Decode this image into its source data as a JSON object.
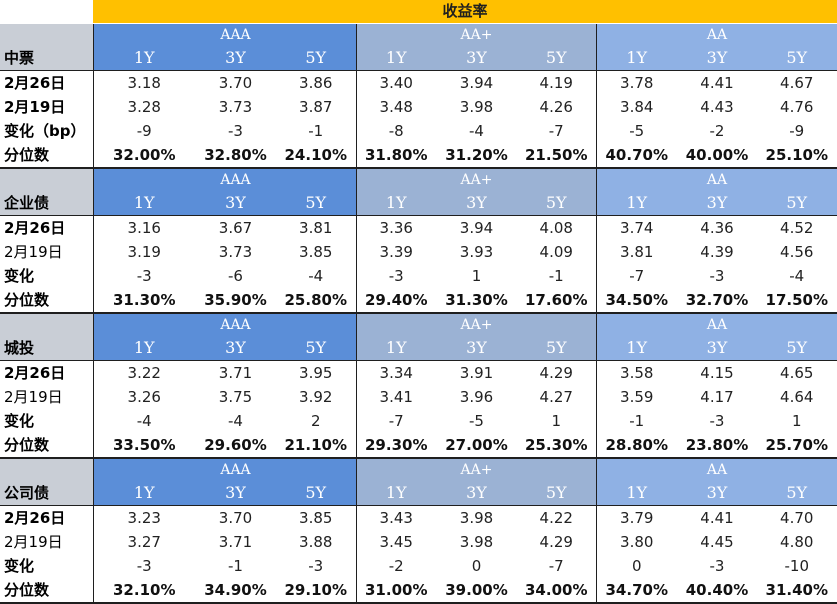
{
  "title": "收益率",
  "ratings": [
    "AAA",
    "AA+",
    "AA"
  ],
  "tenors": [
    "1Y",
    "3Y",
    "5Y"
  ],
  "sections": [
    {
      "name": "中票",
      "rows": [
        {
          "label": "2月26日",
          "bold": true,
          "values": [
            "3.18",
            "3.70",
            "3.86",
            "3.40",
            "3.94",
            "4.19",
            "3.78",
            "4.41",
            "4.67"
          ]
        },
        {
          "label": "2月19日",
          "bold": true,
          "values": [
            "3.28",
            "3.73",
            "3.87",
            "3.48",
            "3.98",
            "4.26",
            "3.84",
            "4.43",
            "4.76"
          ]
        },
        {
          "label": "变化（bp）",
          "bold": true,
          "values": [
            "-9",
            "-3",
            "-1",
            "-8",
            "-4",
            "-7",
            "-5",
            "-2",
            "-9"
          ]
        },
        {
          "label": "分位数",
          "bold": true,
          "pct": true,
          "values": [
            "32.00%",
            "32.80%",
            "24.10%",
            "31.80%",
            "31.20%",
            "21.50%",
            "40.70%",
            "40.00%",
            "25.10%"
          ]
        }
      ]
    },
    {
      "name": "企业债",
      "rows": [
        {
          "label": "2月26日",
          "bold": true,
          "values": [
            "3.16",
            "3.67",
            "3.81",
            "3.36",
            "3.94",
            "4.08",
            "3.74",
            "4.36",
            "4.52"
          ]
        },
        {
          "label": "2月19日",
          "bold": false,
          "values": [
            "3.19",
            "3.73",
            "3.85",
            "3.39",
            "3.93",
            "4.09",
            "3.81",
            "4.39",
            "4.56"
          ]
        },
        {
          "label": "变化",
          "bold": true,
          "values": [
            "-3",
            "-6",
            "-4",
            "-3",
            "1",
            "-1",
            "-7",
            "-3",
            "-4"
          ]
        },
        {
          "label": "分位数",
          "bold": true,
          "pct": true,
          "values": [
            "31.30%",
            "35.90%",
            "25.80%",
            "29.40%",
            "31.30%",
            "17.60%",
            "34.50%",
            "32.70%",
            "17.50%"
          ]
        }
      ]
    },
    {
      "name": "城投",
      "rows": [
        {
          "label": "2月26日",
          "bold": true,
          "values": [
            "3.22",
            "3.71",
            "3.95",
            "3.34",
            "3.91",
            "4.29",
            "3.58",
            "4.15",
            "4.65"
          ]
        },
        {
          "label": "2月19日",
          "bold": false,
          "values": [
            "3.26",
            "3.75",
            "3.92",
            "3.41",
            "3.96",
            "4.27",
            "3.59",
            "4.17",
            "4.64"
          ]
        },
        {
          "label": "变化",
          "bold": true,
          "values": [
            "-4",
            "-4",
            "2",
            "-7",
            "-5",
            "1",
            "-1",
            "-3",
            "1"
          ]
        },
        {
          "label": "分位数",
          "bold": true,
          "pct": true,
          "values": [
            "33.50%",
            "29.60%",
            "21.10%",
            "29.30%",
            "27.00%",
            "25.30%",
            "28.80%",
            "23.80%",
            "25.70%"
          ]
        }
      ]
    },
    {
      "name": "公司债",
      "rows": [
        {
          "label": "2月26日",
          "bold": true,
          "values": [
            "3.23",
            "3.70",
            "3.85",
            "3.43",
            "3.98",
            "4.22",
            "3.79",
            "4.41",
            "4.70"
          ]
        },
        {
          "label": "2月19日",
          "bold": false,
          "values": [
            "3.27",
            "3.71",
            "3.88",
            "3.45",
            "3.98",
            "4.29",
            "3.80",
            "4.45",
            "4.80"
          ]
        },
        {
          "label": "变化",
          "bold": true,
          "values": [
            "-3",
            "-1",
            "-3",
            "-2",
            "0",
            "-7",
            "0",
            "-3",
            "-10"
          ]
        },
        {
          "label": "分位数",
          "bold": true,
          "pct": true,
          "values": [
            "32.10%",
            "34.90%",
            "29.10%",
            "31.00%",
            "39.00%",
            "34.00%",
            "34.70%",
            "40.40%",
            "31.40%"
          ]
        }
      ]
    }
  ]
}
